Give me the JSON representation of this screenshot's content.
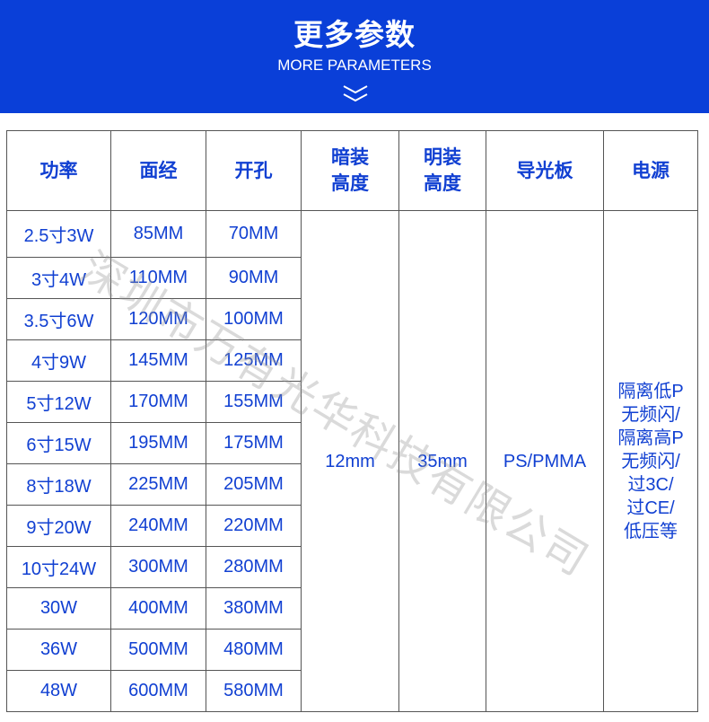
{
  "banner": {
    "title": "更多参数",
    "subtitle": "MORE PARAMETERS",
    "icon": "double-chevron-down-icon",
    "background": "#0a3fd8"
  },
  "table": {
    "headers": [
      "功率",
      "面经",
      "开孔",
      "暗装\n高度",
      "明装\n高度",
      "导光板",
      "电源"
    ],
    "rows": [
      [
        "2.5寸3W",
        "85MM",
        "70MM"
      ],
      [
        "3寸4W",
        "110MM",
        "90MM"
      ],
      [
        "3.5寸6W",
        "120MM",
        "100MM"
      ],
      [
        "4寸9W",
        "145MM",
        "125MM"
      ],
      [
        "5寸12W",
        "170MM",
        "155MM"
      ],
      [
        "6寸15W",
        "195MM",
        "175MM"
      ],
      [
        "8寸18W",
        "225MM",
        "205MM"
      ],
      [
        "9寸20W",
        "240MM",
        "220MM"
      ],
      [
        "10寸24W",
        "300MM",
        "280MM"
      ],
      [
        "30W",
        "400MM",
        "380MM"
      ],
      [
        "36W",
        "500MM",
        "480MM"
      ],
      [
        "48W",
        "600MM",
        "580MM"
      ]
    ],
    "recessed_height": "12mm",
    "surface_height": "35mm",
    "light_guide": "PS/PMMA",
    "power_supply": "隔离低P\n无频闪/\n隔离高P\n无频闪/\n过3C/\n过CE/\n低压等",
    "text_color": "#1140d2"
  },
  "watermark": "深圳市万有光华科技有限公司"
}
